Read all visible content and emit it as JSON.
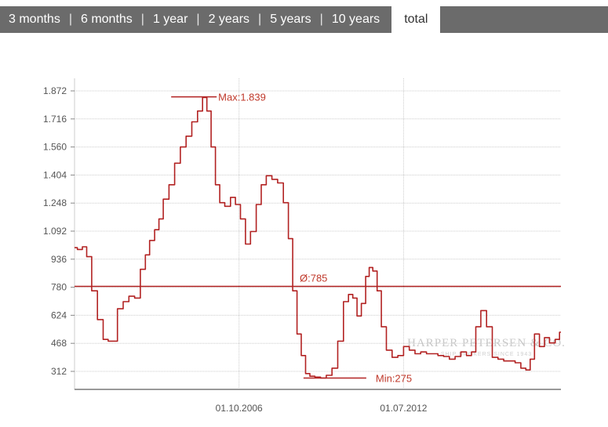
{
  "tabs": [
    {
      "label": "3 months",
      "active": false
    },
    {
      "label": "6 months",
      "active": false
    },
    {
      "label": "1 year",
      "active": false
    },
    {
      "label": "2 years",
      "active": false
    },
    {
      "label": "5 years",
      "active": false
    },
    {
      "label": "10 years",
      "active": false
    },
    {
      "label": "total",
      "active": true
    }
  ],
  "watermark": {
    "name": "Harper Petersen & Co.",
    "tagline": "Ship brokers since 1943"
  },
  "colors": {
    "line": "#b22222",
    "grid": "#cccccc",
    "axis": "#888888",
    "tab_bg": "#6b6b6b"
  },
  "chart_data": {
    "type": "line",
    "y_ticks": [
      "1.872",
      "1.716",
      "1.560",
      "1.404",
      "1.248",
      "1.092",
      "936",
      "780",
      "624",
      "468",
      "312"
    ],
    "y_tick_values": [
      1872,
      1716,
      1560,
      1404,
      1248,
      1092,
      936,
      780,
      624,
      468,
      312
    ],
    "x_tick_labels": [
      "01.10.2006",
      "01.07.2012"
    ],
    "x_tick_years": [
      2006.75,
      2012.5
    ],
    "ylim": [
      200,
      1900
    ],
    "xlim": [
      2001.0,
      2018.0
    ],
    "grid": true,
    "average": {
      "label": "Ø:785",
      "value": 785
    },
    "max": {
      "label": "Max:1.839",
      "value": 1839,
      "x": 2005.2
    },
    "min": {
      "label": "Min:275",
      "value": 275,
      "x": 2010.1
    },
    "series": [
      {
        "x": [
          2001.0,
          2001.2,
          2001.35,
          2001.5,
          2001.7,
          2001.9,
          2002.1,
          2002.25,
          2002.4,
          2002.6,
          2002.8,
          2003.0,
          2003.2,
          2003.4,
          2003.55,
          2003.7,
          2003.9,
          2004.0,
          2004.2,
          2004.4,
          2004.6,
          2004.8,
          2005.0,
          2005.2,
          2005.4,
          2005.55,
          2005.7,
          2005.85,
          2006.0,
          2006.15,
          2006.35,
          2006.55,
          2006.7,
          2006.9,
          2007.05,
          2007.25,
          2007.45,
          2007.6,
          2007.8,
          2008.0,
          2008.2,
          2008.4,
          2008.55,
          2008.7,
          2008.85,
          2009.0,
          2009.15,
          2009.3,
          2009.5,
          2009.7,
          2009.9,
          2010.1,
          2010.3,
          2010.5,
          2010.65,
          2010.8,
          2010.95,
          2011.1,
          2011.25,
          2011.35,
          2011.5,
          2011.65,
          2011.8,
          2012.0,
          2012.2,
          2012.4,
          2012.6,
          2012.8,
          2013.0,
          2013.2,
          2013.4,
          2013.6,
          2013.8,
          2014.0,
          2014.2,
          2014.4,
          2014.6,
          2014.8,
          2014.95,
          2015.1,
          2015.3,
          2015.5,
          2015.7,
          2015.9,
          2016.1,
          2016.3,
          2016.5,
          2016.7,
          2016.85,
          2017.0,
          2017.15,
          2017.35,
          2017.5,
          2017.7,
          2017.9,
          2018.0
        ],
        "y": [
          1000,
          990,
          1005,
          950,
          760,
          600,
          490,
          480,
          480,
          660,
          700,
          730,
          720,
          880,
          960,
          1040,
          1100,
          1160,
          1270,
          1350,
          1470,
          1560,
          1620,
          1700,
          1760,
          1835,
          1760,
          1560,
          1350,
          1250,
          1230,
          1280,
          1240,
          1160,
          1020,
          1090,
          1240,
          1350,
          1400,
          1380,
          1360,
          1250,
          1050,
          760,
          520,
          400,
          300,
          285,
          280,
          275,
          290,
          330,
          480,
          700,
          740,
          720,
          620,
          690,
          840,
          890,
          870,
          760,
          560,
          430,
          390,
          400,
          450,
          430,
          410,
          420,
          410,
          410,
          400,
          395,
          380,
          395,
          420,
          400,
          420,
          560,
          650,
          560,
          390,
          380,
          370,
          370,
          360,
          330,
          320,
          380,
          520,
          450,
          500,
          470,
          490,
          530
        ]
      }
    ]
  }
}
